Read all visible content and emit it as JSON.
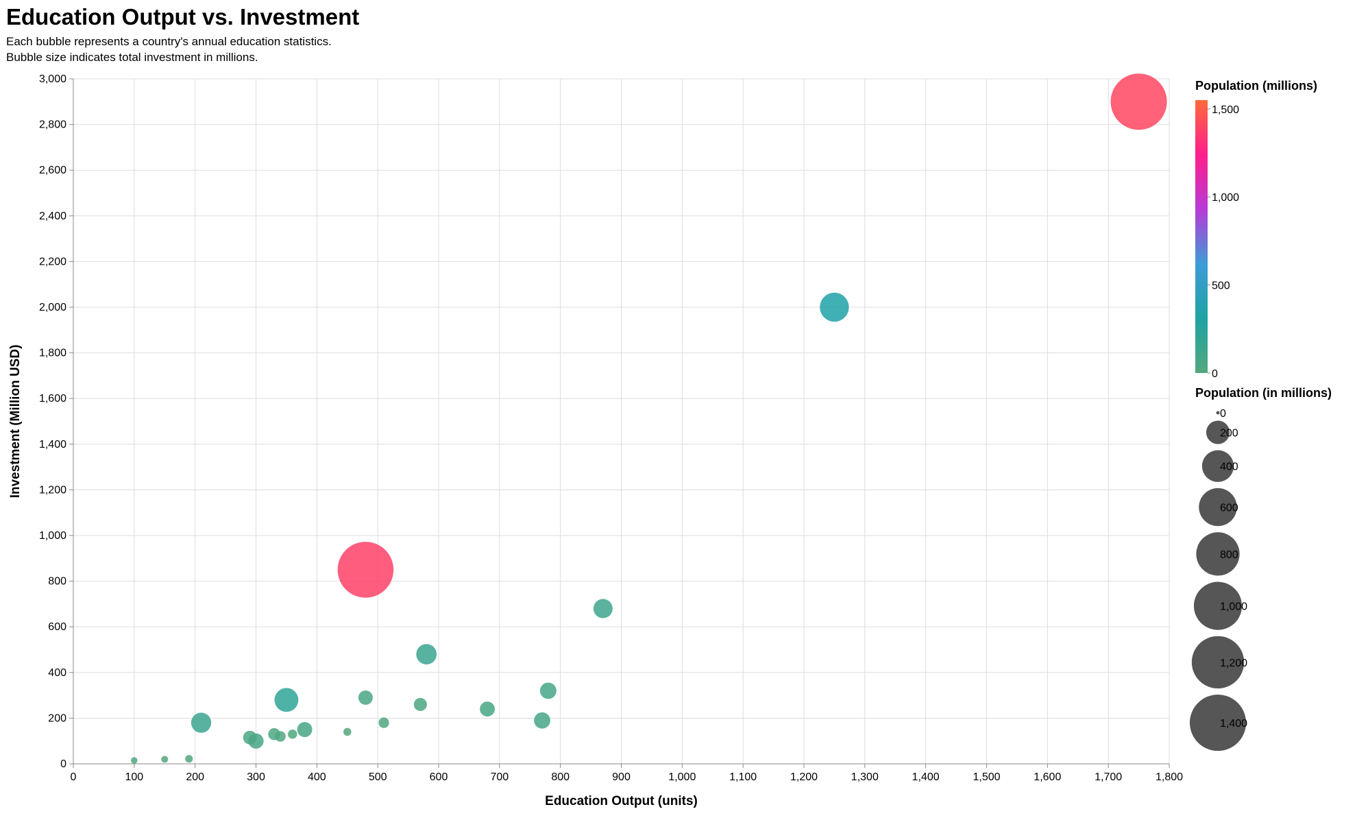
{
  "chart_data": {
    "type": "scatter",
    "title": "Education Output vs. Investment",
    "subtitle": [
      "Each bubble represents a country's annual education statistics.",
      "Bubble size indicates total investment in millions."
    ],
    "xlabel": "Education Output (units)",
    "ylabel": "Investment (Million USD)",
    "xlim": [
      0,
      1800
    ],
    "ylim": [
      0,
      3000
    ],
    "x_ticks": [
      0,
      100,
      200,
      300,
      400,
      500,
      600,
      700,
      800,
      900,
      1000,
      1100,
      1200,
      1300,
      1400,
      1500,
      1600,
      1700,
      1800
    ],
    "y_ticks": [
      0,
      200,
      400,
      600,
      800,
      1000,
      1200,
      1400,
      1600,
      1800,
      2000,
      2200,
      2400,
      2600,
      2800,
      3000
    ],
    "grid": true,
    "color_legend": {
      "title": "Population (millions)",
      "min": 0,
      "max": 1550,
      "ticks": [
        0,
        500,
        1000,
        1500
      ],
      "stops": [
        "#54a77d",
        "#1ea3a4",
        "#3e9bd6",
        "#b73bd6",
        "#ff1f8c",
        "#ff6a3a"
      ]
    },
    "size_legend": {
      "title": "Population (in millions)",
      "values": [
        0,
        200,
        400,
        600,
        800,
        1000,
        1200,
        1400
      ],
      "color": "#4d4d4d"
    },
    "points": [
      {
        "x": 1750,
        "y": 2900,
        "population": 1400
      },
      {
        "x": 480,
        "y": 850,
        "population": 1380
      },
      {
        "x": 1250,
        "y": 2000,
        "population": 330
      },
      {
        "x": 870,
        "y": 680,
        "population": 125
      },
      {
        "x": 580,
        "y": 480,
        "population": 145
      },
      {
        "x": 350,
        "y": 280,
        "population": 210
      },
      {
        "x": 210,
        "y": 180,
        "population": 140
      },
      {
        "x": 780,
        "y": 320,
        "population": 85
      },
      {
        "x": 680,
        "y": 240,
        "population": 67
      },
      {
        "x": 770,
        "y": 190,
        "population": 83
      },
      {
        "x": 480,
        "y": 290,
        "population": 60
      },
      {
        "x": 570,
        "y": 260,
        "population": 47
      },
      {
        "x": 380,
        "y": 150,
        "population": 68
      },
      {
        "x": 300,
        "y": 100,
        "population": 70
      },
      {
        "x": 290,
        "y": 115,
        "population": 52
      },
      {
        "x": 330,
        "y": 130,
        "population": 38
      },
      {
        "x": 340,
        "y": 120,
        "population": 26
      },
      {
        "x": 360,
        "y": 130,
        "population": 17
      },
      {
        "x": 510,
        "y": 180,
        "population": 25
      },
      {
        "x": 450,
        "y": 140,
        "population": 10
      },
      {
        "x": 100,
        "y": 15,
        "population": 5
      },
      {
        "x": 150,
        "y": 20,
        "population": 6
      },
      {
        "x": 190,
        "y": 22,
        "population": 9
      }
    ]
  }
}
